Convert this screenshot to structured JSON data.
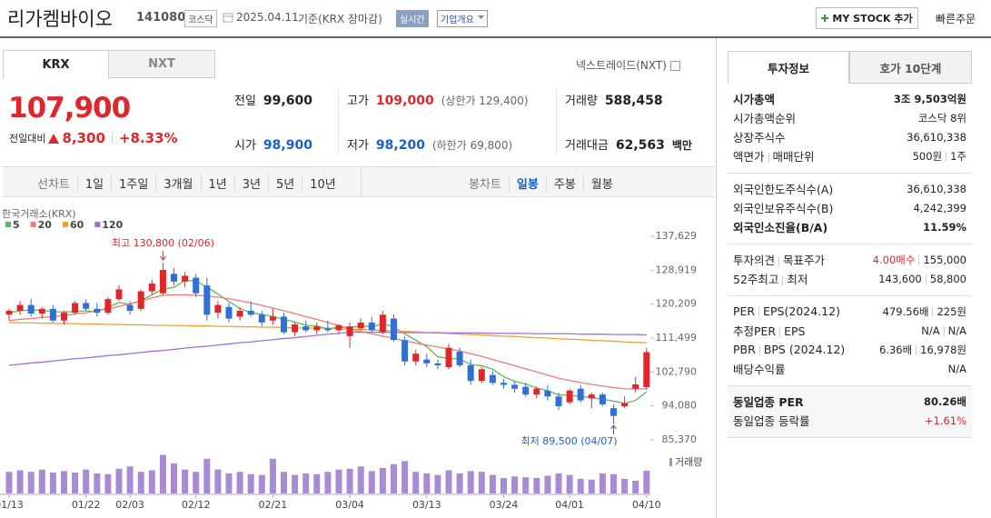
{
  "header": {
    "name": "리가켐바이오",
    "code": "141080",
    "market": "코스닥",
    "date": "2025.04.11",
    "basis": "기준(KRX 장마감)",
    "realtime": "실시간",
    "company": "기업개요",
    "my_stock": "MY STOCK 추가",
    "quick_order": "빠른주문"
  },
  "market_tabs": [
    "KRX",
    "NXT"
  ],
  "nxt_link": "넥스트레이드(NXT)",
  "price": {
    "current": "107,900",
    "change_label": "전일대비",
    "change": "8,300",
    "rate": "+8.33%"
  },
  "stats": [
    {
      "label": "전일",
      "value": "99,600"
    },
    {
      "label": "고가",
      "value": "109,000",
      "note": "(상한가 129,400)"
    },
    {
      "label": "거래량",
      "value": "588,458"
    },
    {
      "label": "시가",
      "value": "98,900"
    },
    {
      "label": "저가",
      "value": "98,200",
      "note": "(하한가 69,800)"
    },
    {
      "label": "거래대금",
      "value": "62,563",
      "unit": "백만"
    }
  ],
  "periods": [
    "선차트",
    "1일",
    "1주일",
    "3개월",
    "1년",
    "3년",
    "5년",
    "10년"
  ],
  "candle_periods": [
    "봉차트",
    "일봉",
    "주봉",
    "월봉"
  ],
  "chart_data": {
    "type": "candlestick",
    "source": "한국거래소(KRX)",
    "categories": [
      "01/13",
      null,
      null,
      null,
      null,
      null,
      null,
      "01/22",
      null,
      null,
      null,
      "02/03",
      null,
      null,
      null,
      null,
      null,
      "02/12",
      null,
      null,
      null,
      null,
      null,
      null,
      "02/21",
      null,
      null,
      null,
      null,
      null,
      null,
      "03/04",
      null,
      null,
      null,
      null,
      null,
      null,
      "03/13",
      null,
      null,
      null,
      null,
      null,
      null,
      "03/24",
      null,
      null,
      null,
      null,
      null,
      "04/01",
      null,
      null,
      null,
      null,
      null,
      null,
      "04/10"
    ],
    "open": [
      117500,
      118500,
      120000,
      117800,
      119000,
      116000,
      118000,
      120500,
      119000,
      118000,
      121500,
      120000,
      119000,
      123500,
      123000,
      128000,
      126000,
      127000,
      125000,
      118000,
      119500,
      117000,
      118500,
      117500,
      116000,
      117000,
      113000,
      114500,
      113500,
      114000,
      113500,
      112000,
      114000,
      115500,
      113000,
      116500,
      111000,
      105500,
      106000,
      105000,
      104000,
      108000,
      104500,
      100500,
      102000,
      100000,
      99500,
      99000,
      97000,
      98000,
      96500,
      95000,
      98500,
      96000,
      97000,
      93500,
      94000,
      98500,
      98900
    ],
    "high": [
      119000,
      121000,
      121500,
      119500,
      120000,
      118500,
      121000,
      121500,
      120500,
      122000,
      125000,
      121000,
      124000,
      126500,
      130800,
      129500,
      128500,
      128000,
      127000,
      121000,
      120500,
      119500,
      121000,
      118500,
      119000,
      118000,
      115500,
      116000,
      115500,
      116000,
      115000,
      115500,
      116500,
      117000,
      118500,
      117500,
      112000,
      108500,
      107500,
      106000,
      110000,
      109000,
      106000,
      104000,
      103000,
      101000,
      100500,
      100000,
      99000,
      99500,
      97500,
      98500,
      99500,
      97500,
      97500,
      94500,
      96500,
      101500,
      109000
    ],
    "low": [
      116000,
      117500,
      117000,
      116500,
      115500,
      115000,
      117500,
      118500,
      117000,
      117500,
      121000,
      117500,
      118500,
      122500,
      122500,
      125000,
      124500,
      122000,
      116000,
      116500,
      115500,
      116000,
      117000,
      114500,
      115000,
      112500,
      112000,
      113000,
      112500,
      113000,
      112500,
      109000,
      113500,
      113000,
      112500,
      110500,
      104500,
      104500,
      104000,
      103500,
      103500,
      104000,
      99500,
      100000,
      99500,
      98500,
      97500,
      96500,
      96000,
      95500,
      93000,
      94500,
      95000,
      93500,
      94000,
      89500,
      93500,
      97500,
      98200
    ],
    "close": [
      118500,
      120000,
      117800,
      119000,
      116000,
      118000,
      120500,
      119000,
      118000,
      121500,
      124000,
      118500,
      123500,
      125500,
      129000,
      126000,
      127500,
      123000,
      117500,
      120000,
      116500,
      118500,
      117500,
      115500,
      117000,
      113000,
      115000,
      113500,
      114500,
      113500,
      114800,
      114500,
      115500,
      113500,
      117500,
      111000,
      105500,
      107500,
      105000,
      104500,
      109000,
      104500,
      100500,
      103500,
      100000,
      99500,
      98500,
      97000,
      98500,
      96500,
      94000,
      98000,
      95500,
      97000,
      94500,
      91500,
      94800,
      99600,
      107900
    ],
    "volume": [
      560000,
      600000,
      560000,
      620000,
      540000,
      580000,
      540000,
      620000,
      520000,
      500000,
      640000,
      700000,
      560000,
      600000,
      1000000,
      780000,
      620000,
      560000,
      900000,
      620000,
      520000,
      560000,
      500000,
      480000,
      900000,
      560000,
      480000,
      520000,
      500000,
      560000,
      620000,
      640000,
      700000,
      580000,
      660000,
      760000,
      840000,
      560000,
      520000,
      480000,
      600000,
      520000,
      580000,
      560000,
      480000,
      400000,
      440000,
      420000,
      400000,
      460000,
      520000,
      480000,
      380000,
      360000,
      520000,
      500000,
      380000,
      330000,
      588458
    ],
    "volume_label": "거래량",
    "volume_color": "#a98bd3",
    "up_color": "#e0262b",
    "down_color": "#2f6fd6",
    "moving_averages": [
      {
        "name": "5",
        "color": "#5cb85c",
        "values": [
          118000,
          118500,
          118700,
          118600,
          118300,
          118200,
          118300,
          118500,
          118300,
          119400,
          120600,
          120200,
          121100,
          122600,
          124100,
          124500,
          126300,
          126200,
          124600,
          122800,
          120900,
          119100,
          118000,
          117600,
          117000,
          116300,
          115600,
          114800,
          114600,
          113900,
          114300,
          114200,
          114600,
          114400,
          115200,
          114400,
          112600,
          111000,
          109300,
          106700,
          106300,
          106100,
          104700,
          104400,
          103500,
          101600,
          100400,
          99700,
          98700,
          98000,
          96900,
          96800,
          96500,
          96200,
          95800,
          95300,
          94700,
          95500,
          97700
        ]
      },
      {
        "name": "20",
        "color": "#f07a7a",
        "values": [
          116000,
          116300,
          116500,
          116800,
          117000,
          117300,
          117700,
          118000,
          118500,
          119000,
          119600,
          120300,
          121000,
          121800,
          122500,
          122600,
          122600,
          122500,
          122300,
          122000,
          121600,
          121100,
          120500,
          119900,
          119200,
          118500,
          117800,
          117000,
          116300,
          115500,
          114700,
          113800,
          113200,
          112600,
          112000,
          111400,
          110800,
          110200,
          109700,
          109200,
          108700,
          108200,
          107500,
          106800,
          106000,
          105200,
          104400,
          103600,
          102800,
          102000,
          101200,
          100600,
          100100,
          99600,
          99200,
          98800,
          98500,
          98400,
          98500
        ]
      },
      {
        "name": "60",
        "color": "#f0a030",
        "values": [
          115500,
          115400,
          115400,
          115300,
          115300,
          115200,
          115200,
          115100,
          115100,
          115000,
          115000,
          114900,
          114900,
          114800,
          114800,
          114700,
          114700,
          114600,
          114600,
          114500,
          114500,
          114400,
          114400,
          114300,
          114300,
          114200,
          114100,
          114100,
          114000,
          114000,
          113900,
          113800,
          113700,
          113600,
          113500,
          113300,
          113200,
          113100,
          112900,
          112800,
          112700,
          112500,
          112400,
          112300,
          112100,
          112000,
          111900,
          111700,
          111600,
          111500,
          111300,
          111200,
          111100,
          110900,
          110800,
          110700,
          110500,
          110400,
          110300
        ]
      },
      {
        "name": "120",
        "color": "#a070d0",
        "values": [
          104500,
          104800,
          105100,
          105300,
          105600,
          105900,
          106200,
          106400,
          106700,
          107000,
          107200,
          107500,
          107800,
          108100,
          108300,
          108600,
          108900,
          109200,
          109400,
          109700,
          110000,
          110300,
          110500,
          110800,
          111100,
          111400,
          111600,
          111900,
          112200,
          112500,
          112700,
          113000,
          113000,
          113000,
          113000,
          112900,
          112900,
          112900,
          112900,
          112900,
          112800,
          112800,
          112800,
          112800,
          112700,
          112700,
          112700,
          112700,
          112600,
          112600,
          112600,
          112600,
          112500,
          112500,
          112500,
          112400,
          112400,
          112400,
          112300
        ]
      }
    ],
    "ylim": [
      83037,
      145095
    ],
    "yticks": [
      {
        "value": 137629,
        "label": "137,629"
      },
      {
        "value": 128919,
        "label": "128,919"
      },
      {
        "value": 120209,
        "label": "120,209"
      },
      {
        "value": 111499,
        "label": "111,499"
      },
      {
        "value": 102790,
        "label": "102,790"
      },
      {
        "value": 94080,
        "label": "94,080"
      },
      {
        "value": 85370,
        "label": "85,370"
      }
    ],
    "vlim": [
      0,
      1060000
    ],
    "grid": false,
    "annotations": [
      {
        "text": "최고 130,800 (02/06)",
        "color": "#e0262b"
      },
      {
        "text": "최저 89,500 (04/07)",
        "color": "#1961c6"
      }
    ]
  },
  "info_tabs": [
    "투자정보",
    "호가 10단계"
  ],
  "info_sections": [
    [
      {
        "label": [
          "시가총액"
        ],
        "values": [
          "3조 9,503억원"
        ],
        "bold": true
      },
      {
        "label": [
          "시가총액순위"
        ],
        "values": [
          "코스닥 8위"
        ]
      },
      {
        "label": [
          "상장주식수"
        ],
        "values": [
          "36,610,338"
        ]
      },
      {
        "label": [
          "액면가",
          "매매단위"
        ],
        "values": [
          "500원",
          "1주"
        ]
      }
    ],
    [
      {
        "label": [
          "외국인한도주식수(A)"
        ],
        "values": [
          "36,610,338"
        ]
      },
      {
        "label": [
          "외국인보유주식수(B)"
        ],
        "values": [
          "4,242,399"
        ]
      },
      {
        "label": [
          "외국인소진율(B/A)"
        ],
        "values": [
          "11.59%"
        ],
        "bold": true
      }
    ],
    [
      {
        "label": [
          "투자의견",
          "목표주가"
        ],
        "values": [
          "4.00매수",
          "155,000"
        ],
        "color": "#e0262b"
      },
      {
        "label": [
          "52주최고",
          "최저"
        ],
        "values": [
          "143,600",
          "58,800"
        ]
      }
    ],
    [
      {
        "label": [
          "PER",
          "EPS(2024.12)"
        ],
        "values": [
          "479.56배",
          "225원"
        ]
      },
      {
        "label": [
          "추정PER",
          "EPS"
        ],
        "values": [
          "N/A",
          "N/A"
        ]
      },
      {
        "label": [
          "PBR",
          "BPS (2024.12)"
        ],
        "values": [
          "6.36배",
          "16,978원"
        ]
      },
      {
        "label": [
          "배당수익률"
        ],
        "values": [
          "N/A"
        ]
      }
    ],
    [
      {
        "label": [
          "동일업종 PER"
        ],
        "values": [
          "80.26배"
        ],
        "bold": true
      },
      {
        "label": [
          "동일업종 등락률"
        ],
        "values": [
          "+1.61%"
        ],
        "color": "#e0262b"
      }
    ]
  ]
}
